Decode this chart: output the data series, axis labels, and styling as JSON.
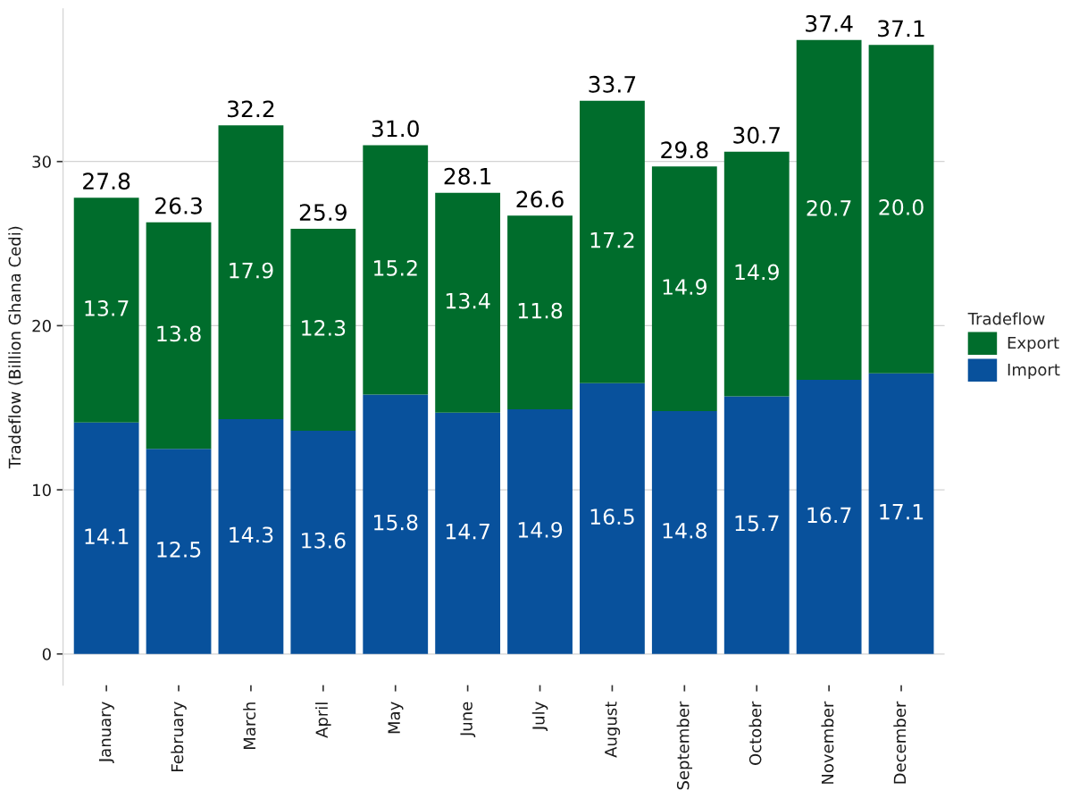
{
  "chart_data": {
    "type": "bar",
    "stacked": true,
    "categories": [
      "January",
      "February",
      "March",
      "April",
      "May",
      "June",
      "July",
      "August",
      "September",
      "October",
      "November",
      "December"
    ],
    "series": [
      {
        "name": "Import",
        "color": "#08519c",
        "values": [
          14.1,
          12.5,
          14.3,
          13.6,
          15.8,
          14.7,
          14.9,
          16.5,
          14.8,
          15.7,
          16.7,
          17.1
        ],
        "value_labels": [
          "14.1",
          "12.5",
          "14.3",
          "13.6",
          "15.8",
          "14.7",
          "14.9",
          "16.5",
          "14.8",
          "15.7",
          "16.7",
          "17.1"
        ]
      },
      {
        "name": "Export",
        "color": "#006d2c",
        "values": [
          13.7,
          13.8,
          17.9,
          12.3,
          15.2,
          13.4,
          11.8,
          17.2,
          14.9,
          14.9,
          20.7,
          20.0
        ],
        "value_labels": [
          "13.7",
          "13.8",
          "17.9",
          "12.3",
          "15.2",
          "13.4",
          "11.8",
          "17.2",
          "14.9",
          "14.9",
          "20.7",
          "20.0"
        ]
      }
    ],
    "totals": [
      "27.8",
      "26.3",
      "32.2",
      "25.9",
      "31.0",
      "28.1",
      "26.6",
      "33.7",
      "29.8",
      "30.7",
      "37.4",
      "37.1"
    ],
    "ylabel": "Tradeflow (Billion Ghana Cedi)",
    "legend_title": "Tradeflow",
    "ylim": [
      -1.9,
      39.3
    ],
    "yticks": [
      0,
      10,
      20,
      30
    ],
    "grid": "y",
    "legend": "right"
  }
}
